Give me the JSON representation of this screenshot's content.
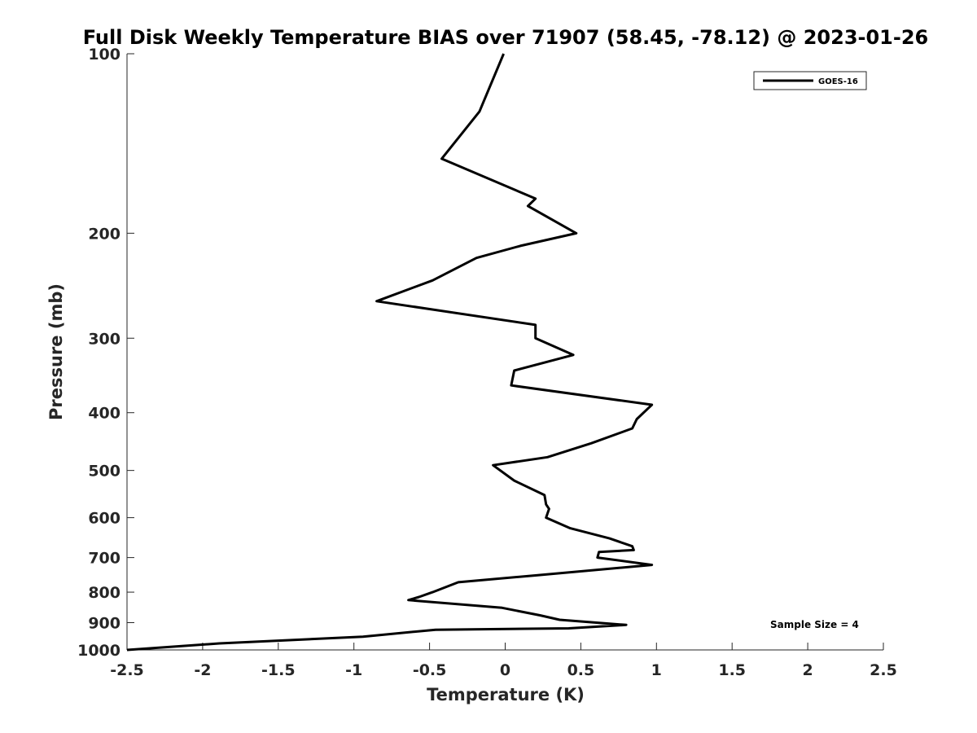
{
  "chart_data": {
    "type": "line",
    "title": "Full Disk Weekly Temperature BIAS over 71907 (58.45, -78.12) @ 2023-01-26",
    "xlabel": "Temperature (K)",
    "ylabel": "Pressure (mb)",
    "xlim": [
      -2.5,
      2.5
    ],
    "ylim": [
      100,
      1000
    ],
    "y_scale": "log",
    "y_reversed": true,
    "grid": false,
    "legend_position": "top-right",
    "x_ticks": [
      -2.5,
      -2,
      -1.5,
      -1,
      -0.5,
      0,
      0.5,
      1,
      1.5,
      2,
      2.5
    ],
    "x_tick_labels": [
      "-2.5",
      "-2",
      "-1.5",
      "-1",
      "-0.5",
      "0",
      "0.5",
      "1",
      "1.5",
      "2",
      "2.5"
    ],
    "y_ticks": [
      100,
      200,
      300,
      400,
      500,
      600,
      700,
      800,
      900,
      1000
    ],
    "y_tick_labels": [
      "100",
      "200",
      "300",
      "400",
      "500",
      "600",
      "700",
      "800",
      "900",
      "1000"
    ],
    "series": [
      {
        "name": "GOES-16",
        "color": "#000000",
        "points": [
          [
            -0.01,
            100
          ],
          [
            -0.17,
            125
          ],
          [
            -0.42,
            150
          ],
          [
            0.2,
            175
          ],
          [
            0.15,
            180
          ],
          [
            0.47,
            200
          ],
          [
            0.1,
            210
          ],
          [
            -0.19,
            220
          ],
          [
            -0.48,
            240
          ],
          [
            -0.85,
            260
          ],
          [
            0.2,
            285
          ],
          [
            0.2,
            300
          ],
          [
            0.45,
            320
          ],
          [
            0.06,
            340
          ],
          [
            0.04,
            360
          ],
          [
            0.97,
            388
          ],
          [
            0.87,
            410
          ],
          [
            0.84,
            425
          ],
          [
            0.57,
            450
          ],
          [
            0.28,
            475
          ],
          [
            -0.08,
            490
          ],
          [
            0.06,
            520
          ],
          [
            0.26,
            550
          ],
          [
            0.27,
            570
          ],
          [
            0.29,
            580
          ],
          [
            0.27,
            600
          ],
          [
            0.43,
            625
          ],
          [
            0.69,
            650
          ],
          [
            0.84,
            670
          ],
          [
            0.85,
            680
          ],
          [
            0.62,
            685
          ],
          [
            0.61,
            700
          ],
          [
            0.97,
            720
          ],
          [
            0.2,
            750
          ],
          [
            -0.31,
            770
          ],
          [
            -0.48,
            800
          ],
          [
            -0.57,
            815
          ],
          [
            -0.64,
            825
          ],
          [
            -0.02,
            850
          ],
          [
            0.23,
            875
          ],
          [
            0.36,
            890
          ],
          [
            0.8,
            908
          ],
          [
            0.42,
            920
          ],
          [
            -0.46,
            925
          ],
          [
            -0.94,
            950
          ],
          [
            -1.89,
            975
          ],
          [
            -2.5,
            1000
          ]
        ]
      }
    ],
    "annotations": [
      "Sample Size = 4"
    ]
  }
}
